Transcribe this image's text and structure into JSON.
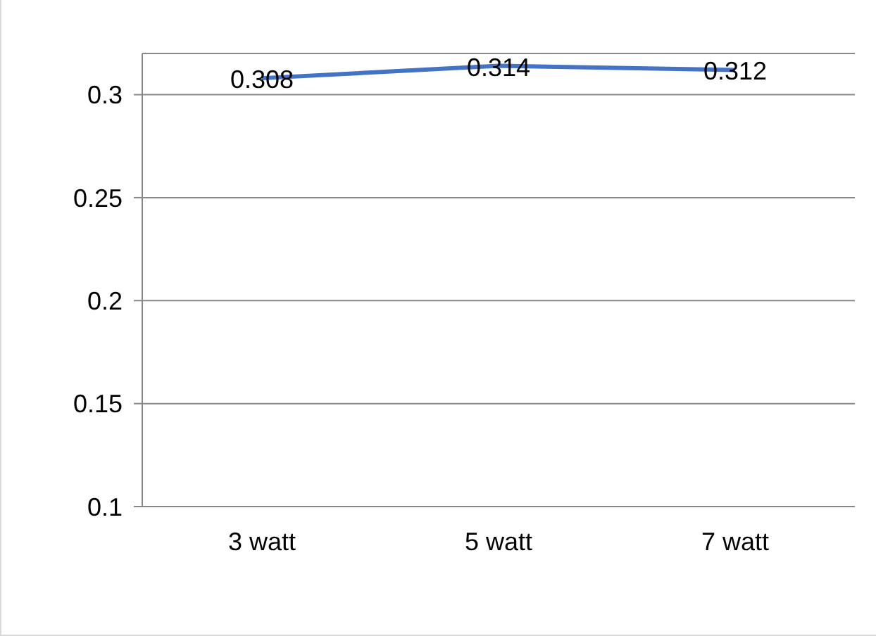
{
  "chart_data": {
    "type": "line",
    "categories": [
      "3 watt",
      "5 watt",
      "7 watt"
    ],
    "series": [
      {
        "color": "#4472c4",
        "values": [
          0.308,
          0.314,
          0.312
        ]
      }
    ],
    "ylim": [
      0.1,
      0.32
    ],
    "yticks": [
      0.1,
      0.15,
      0.2,
      0.25,
      0.3
    ],
    "grid": "y",
    "data_labels": true,
    "legend": false,
    "marker": "none"
  }
}
